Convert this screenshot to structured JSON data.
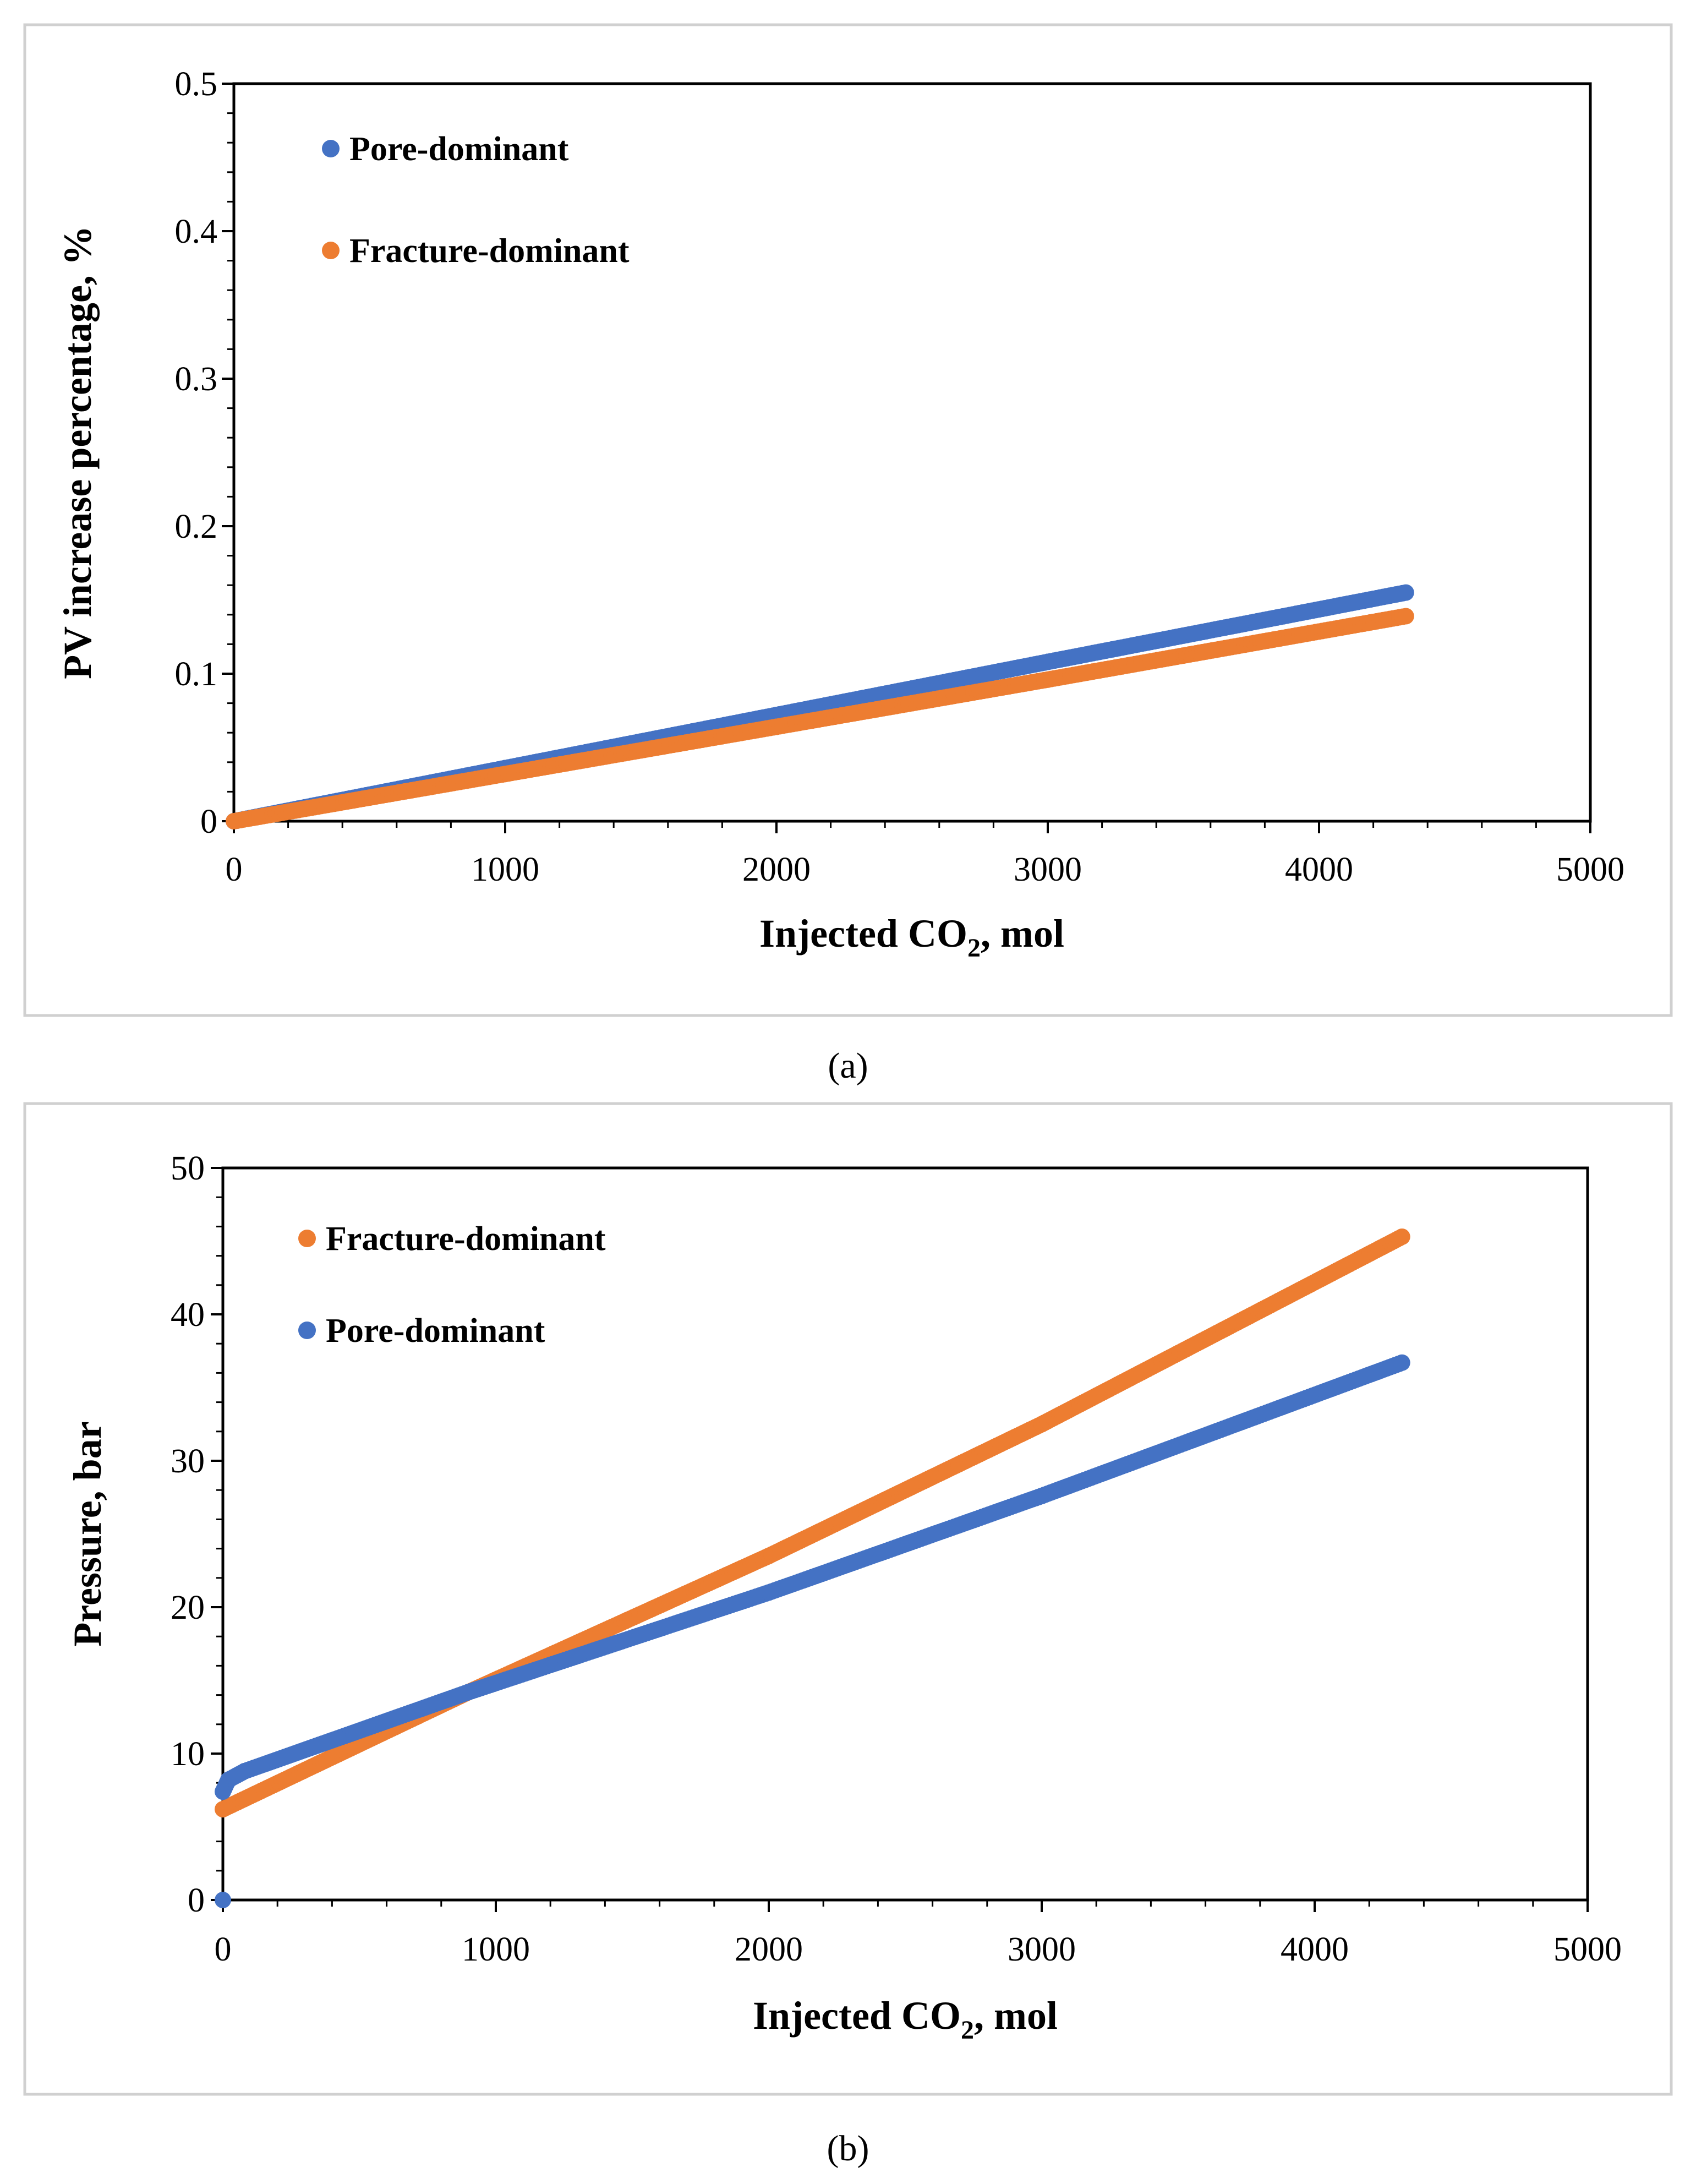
{
  "chart_data": [
    {
      "type": "scatter",
      "panel": "(a)",
      "xlabel_main": "Injected CO",
      "xlabel_sub": "2",
      "xlabel_rest": ", mol",
      "ylabel": "PV increase percentage, %",
      "xlim": [
        0,
        5000
      ],
      "ylim": [
        0,
        0.5
      ],
      "xticks": [
        "0",
        "1000",
        "2000",
        "3000",
        "4000",
        "5000"
      ],
      "yticks": [
        "0",
        "0.1",
        "0.2",
        "0.3",
        "0.4",
        "0.5"
      ],
      "legend": [
        "Pore-dominant",
        "Fracture-dominant"
      ],
      "series": [
        {
          "name": "Pore-dominant",
          "color": "#4472C4",
          "x": [
            0,
            1000,
            2000,
            3000,
            4320
          ],
          "y": [
            0,
            0.036,
            0.072,
            0.108,
            0.155
          ]
        },
        {
          "name": "Fracture-dominant",
          "color": "#ED7D31",
          "x": [
            0,
            1000,
            2000,
            3000,
            4320
          ],
          "y": [
            0,
            0.032,
            0.064,
            0.096,
            0.139
          ]
        }
      ]
    },
    {
      "type": "scatter",
      "panel": "(b)",
      "xlabel_main": "Injected CO",
      "xlabel_sub": "2",
      "xlabel_rest": ", mol",
      "ylabel": "Pressure, bar",
      "xlim": [
        0,
        5000
      ],
      "ylim": [
        0,
        50
      ],
      "xticks": [
        "0",
        "1000",
        "2000",
        "3000",
        "4000",
        "5000"
      ],
      "yticks": [
        "0",
        "10",
        "20",
        "30",
        "40",
        "50"
      ],
      "legend": [
        "Fracture-dominant",
        "Pore-dominant"
      ],
      "series": [
        {
          "name": "Fracture-dominant",
          "color": "#ED7D31",
          "x": [
            0,
            900,
            2000,
            3000,
            4320
          ],
          "y": [
            6.2,
            14.2,
            23.5,
            32.5,
            45.3
          ]
        },
        {
          "name": "Pore-dominant",
          "color": "#4472C4",
          "x": [
            0,
            0,
            20,
            80,
            900,
            2000,
            3000,
            4320
          ],
          "y": [
            0,
            7.4,
            8.2,
            8.8,
            14.2,
            21,
            27.6,
            36.7
          ]
        }
      ]
    }
  ]
}
